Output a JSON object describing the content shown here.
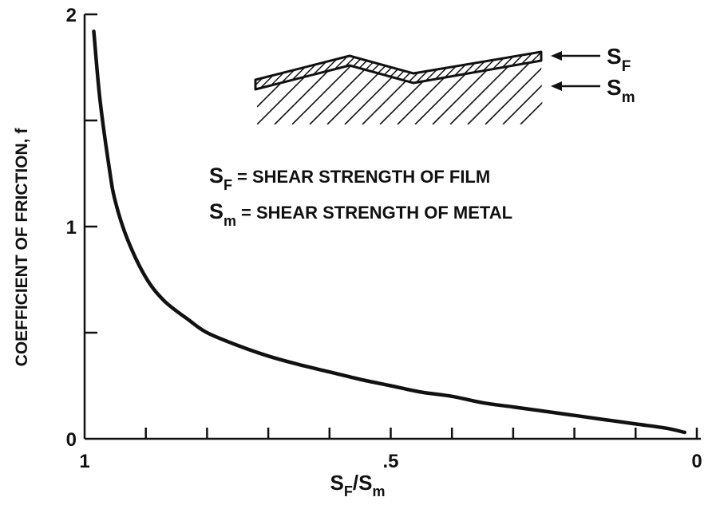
{
  "chart_data": {
    "type": "line",
    "title": "",
    "xlabel": {
      "S": "S",
      "sub1": "F",
      "slash": "/",
      "S2": "S",
      "sub2": "m"
    },
    "ylabel": "COEFFICIENT OF FRICTION, f",
    "xlim": [
      1,
      0
    ],
    "ylim": [
      0,
      2
    ],
    "x_reversed": true,
    "x_ticks": [
      1,
      0.9,
      0.8,
      0.7,
      0.6,
      0.5,
      0.4,
      0.3,
      0.2,
      0.1,
      0
    ],
    "x_tick_labels": [
      {
        "value": 1,
        "label": "1"
      },
      {
        "value": 0.5,
        "label": ".5"
      },
      {
        "value": 0,
        "label": "0"
      }
    ],
    "y_ticks": [
      0,
      0.5,
      1,
      1.5,
      2
    ],
    "y_tick_labels": [
      {
        "value": 0,
        "label": "0"
      },
      {
        "value": 1,
        "label": "1"
      },
      {
        "value": 2,
        "label": "2"
      }
    ],
    "grid": false,
    "series": [
      {
        "color": "#111111",
        "x": [
          0.985,
          0.975,
          0.96,
          0.95,
          0.93,
          0.9,
          0.87,
          0.83,
          0.8,
          0.75,
          0.7,
          0.65,
          0.6,
          0.55,
          0.5,
          0.45,
          0.4,
          0.35,
          0.3,
          0.25,
          0.2,
          0.15,
          0.1,
          0.05,
          0.02
        ],
        "y": [
          1.92,
          1.6,
          1.28,
          1.12,
          0.94,
          0.76,
          0.65,
          0.56,
          0.5,
          0.44,
          0.39,
          0.35,
          0.315,
          0.28,
          0.25,
          0.22,
          0.2,
          0.17,
          0.15,
          0.13,
          0.11,
          0.09,
          0.07,
          0.05,
          0.03
        ]
      }
    ],
    "inset": {
      "arrow_labels": [
        {
          "main": "S",
          "sub": "F"
        },
        {
          "main": "S",
          "sub": "m"
        }
      ],
      "legend": [
        {
          "symbol": "S",
          "sub": "F",
          "text": "= SHEAR STRENGTH OF FILM"
        },
        {
          "symbol": "S",
          "sub": "m",
          "text": "= SHEAR STRENGTH OF METAL"
        }
      ]
    }
  }
}
